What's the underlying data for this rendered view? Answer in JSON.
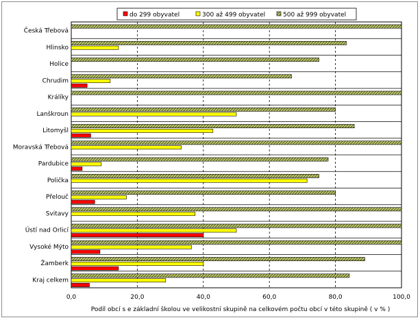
{
  "chart_data": {
    "type": "bar",
    "orientation": "horizontal",
    "title": "",
    "xlabel": "Podíl obcí s e základní školou ve velikostní skupině na celkovém počtu obcí v této skupině ( v % )",
    "ylabel": "",
    "xlim": [
      0,
      100
    ],
    "xticks": [
      "0,0",
      "20,0",
      "40,0",
      "60,0",
      "80,0",
      "100,0"
    ],
    "xtick_values": [
      0,
      20,
      40,
      60,
      80,
      100
    ],
    "categories": [
      "Česká Třebová",
      "Hlinsko",
      "Holice",
      "Chrudim",
      "Králíky",
      "Lanškroun",
      "Litomyšl",
      "Moravská Třebová",
      "Pardubice",
      "Polička",
      "Přelouč",
      "Svitavy",
      "Ústí nad Orlicí",
      "Vysoké Mýto",
      "Žamberk",
      "Kraj celkem"
    ],
    "series": [
      {
        "name": "500 až 999 obyvatel",
        "color": "#8f9b3c",
        "values": [
          100,
          83.3,
          75,
          66.7,
          100,
          80,
          85.7,
          100,
          77.8,
          75,
          80,
          100,
          100,
          100,
          88.9,
          84.2
        ]
      },
      {
        "name": "300 až 499 obyvatel",
        "color": "#ffff00",
        "values": [
          null,
          14.3,
          null,
          11.8,
          null,
          50,
          42.9,
          33.3,
          9.1,
          71.4,
          16.7,
          37.5,
          50,
          36.4,
          40,
          28.6
        ]
      },
      {
        "name": "do 299 obyvatel",
        "color": "#ff0000",
        "values": [
          null,
          null,
          null,
          4.8,
          null,
          null,
          5.9,
          null,
          3.3,
          null,
          7.1,
          null,
          40,
          8.7,
          14.3,
          5.5
        ]
      }
    ],
    "legend": {
      "position": "top",
      "items": [
        {
          "label": "do 299 obyvatel",
          "color": "#ff0000"
        },
        {
          "label": "300 až 499 obyvatel",
          "color": "#ffff00"
        },
        {
          "label": "500 až 999 obyvatel",
          "color": "#8f9b3c"
        }
      ]
    },
    "grid": true
  }
}
